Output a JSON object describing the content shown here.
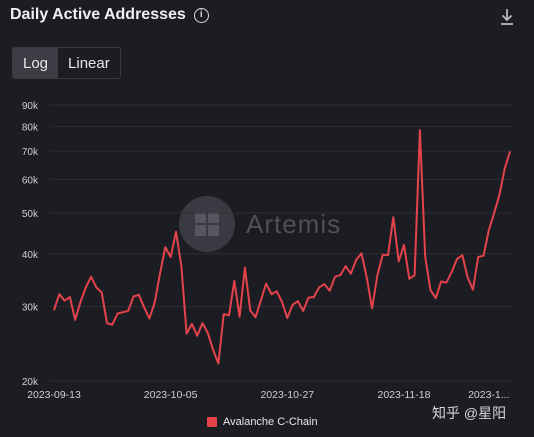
{
  "header": {
    "title": "Daily Active Addresses",
    "info_icon": "info-icon",
    "download_icon": "download-icon"
  },
  "scale_toggle": {
    "options": [
      "Log",
      "Linear"
    ],
    "selected": "Log"
  },
  "watermark": {
    "text": "Artemis"
  },
  "credit": "知乎 @星阳",
  "chart_data": {
    "type": "line",
    "yscale": "log",
    "ylim": [
      20000,
      90000
    ],
    "yticks": [
      "20k",
      "30k",
      "40k",
      "50k",
      "60k",
      "70k",
      "80k",
      "90k"
    ],
    "ytick_values": [
      20000,
      30000,
      40000,
      50000,
      60000,
      70000,
      80000,
      90000
    ],
    "xticks": [
      "2023-09-13",
      "2023-10-05",
      "2023-10-27",
      "2023-11-18",
      "2023-1..."
    ],
    "x_start": "2023-09-13",
    "grid": true,
    "legend_position": "bottom",
    "series": [
      {
        "name": "Avalanche C-Chain",
        "color": "#e4434c",
        "values": [
          29400,
          32100,
          31000,
          31600,
          27900,
          30800,
          33300,
          35300,
          33300,
          32400,
          27400,
          27200,
          28900,
          29100,
          29300,
          31700,
          32000,
          29900,
          28100,
          30700,
          35900,
          41500,
          39300,
          45100,
          37500,
          25900,
          27300,
          25600,
          27400,
          26000,
          23700,
          22000,
          28800,
          28600,
          34500,
          28400,
          37100,
          29400,
          28300,
          31000,
          34000,
          32100,
          32600,
          30800,
          28200,
          30300,
          30900,
          29300,
          31500,
          31600,
          33300,
          33900,
          32700,
          35300,
          35600,
          37400,
          35900,
          38700,
          40100,
          35100,
          29700,
          35600,
          39800,
          39700,
          48800,
          38400,
          42000,
          34900,
          35600,
          78500,
          39300,
          32800,
          31400,
          34400,
          34200,
          36200,
          38900,
          39700,
          35200,
          32900,
          39300,
          39600,
          45500,
          49900,
          55100,
          63600,
          69900
        ]
      }
    ]
  }
}
